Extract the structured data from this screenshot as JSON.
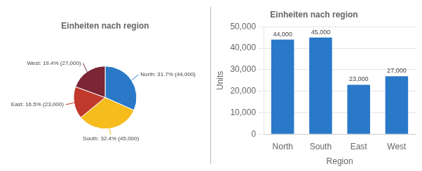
{
  "chart_data": [
    {
      "type": "pie",
      "title": "Einheiten nach region",
      "values": [
        44000,
        45000,
        23000,
        27000
      ],
      "value_labels": [
        "North: 31.7% (44,000)",
        "South: 32.4% (45,000)",
        "East: 16.5% (23,000)",
        "West: 19.4% (27,000)"
      ],
      "colors": [
        "#2979C8",
        "#F5BC1C",
        "#C0392B",
        "#7B2535"
      ]
    },
    {
      "type": "bar",
      "title": "Einheiten nach region",
      "categories": [
        "North",
        "South",
        "East",
        "West"
      ],
      "values": [
        44000,
        45000,
        23000,
        27000
      ],
      "value_labels": [
        "44,000",
        "45,000",
        "23,000",
        "27,000"
      ],
      "color": "#2979C8",
      "xlabel": "Region",
      "ylabel": "Units",
      "ylim": [
        0,
        50000
      ],
      "yticks": [
        0,
        {
          "value": 10000,
          "label": "10,000"
        },
        {
          "value": 20000,
          "label": "20,000"
        },
        {
          "value": 30000,
          "label": "30,000"
        },
        {
          "value": 40000,
          "label": "40,000"
        },
        {
          "value": 50000,
          "label": "50,000"
        }
      ],
      "grid": true
    }
  ]
}
